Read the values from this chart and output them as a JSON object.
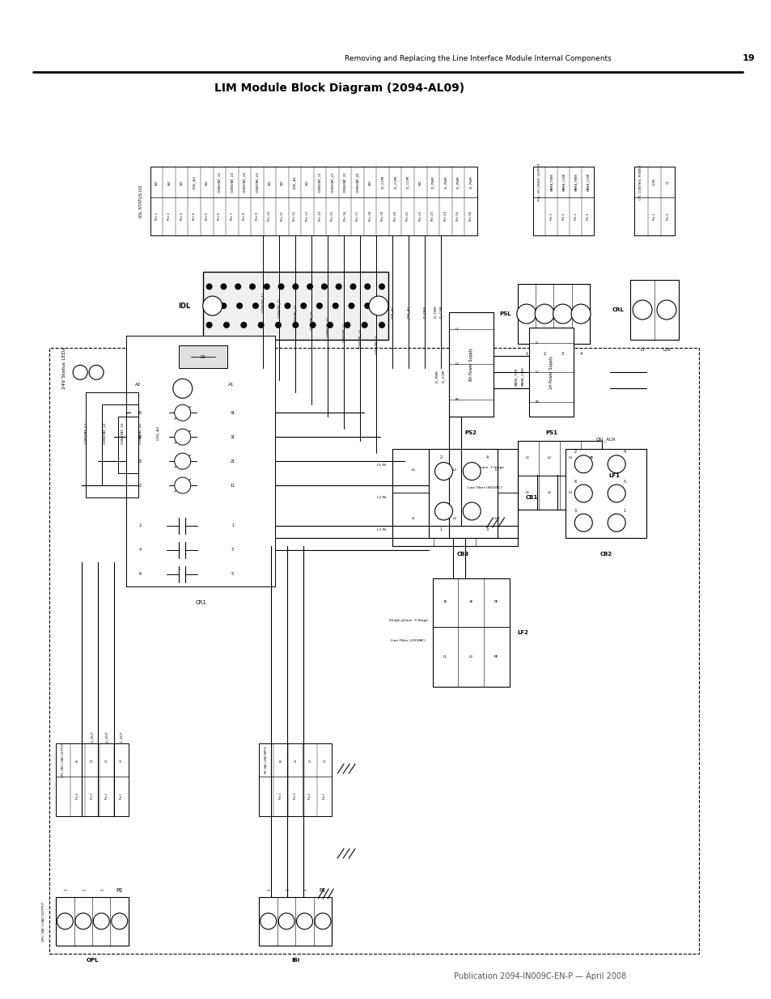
{
  "page_width": 9.54,
  "page_height": 12.35,
  "bg_color": "#ffffff",
  "header_text": "Removing and Replacing the Line Interface Module Internal Components",
  "header_page_num": "19",
  "footer_text": "Publication 2094-IN009C-EN-P — April 2008",
  "title": "LIM Module Block Diagram (2094-AL09)",
  "idl_labels_top": [
    "N/C",
    "N/C",
    "N/C",
    "COIL_A2",
    "N/C",
    "CONSTAT_12",
    "CONSTAT_22",
    "CONSTAT_32",
    "CONSTAT_42",
    "N/C",
    "N/C",
    "COIL_A1",
    "N/C",
    "CONSTAT_11",
    "CONSTAT_21",
    "CONSTAT_31",
    "CONSTAT_41",
    "N/C",
    "IO_COM",
    "IO_COM",
    "IO_COM",
    "N/C",
    "IO_PWR",
    "IO_PWR",
    "IO_PWR",
    "IO_PWR"
  ],
  "idl_pin_labels": [
    "Pin 1",
    "Pin 2",
    "Pin 3",
    "Pin 4",
    "Pin 5",
    "Pin 6",
    "Pin 7",
    "Pin 8",
    "Pin 9",
    "Pin 10",
    "Pin 11",
    "Pin 12",
    "Pin 13",
    "Pin 14",
    "Pin 15",
    "Pin 16",
    "Pin 17",
    "Pin 18",
    "Pin 19",
    "Pin 20",
    "Pin 21",
    "Pin 22",
    "Pin 23",
    "Pin 24",
    "Pin 25",
    "Pin 26"
  ],
  "psl_top_labels": [
    "PSL: I/O 24VDC OUTPUT",
    "MBRK_PWR",
    "MBRK_COM",
    "MBRK_PWR",
    "MBRK_COM"
  ],
  "psl_pin_labels": [
    "Pin 1",
    "Pin 2",
    "Pin 3",
    "Pin 4"
  ],
  "crl_top_labels": [
    "CPL CONTROL POWER",
    "L2/N",
    "L1"
  ],
  "crl_pin_labels": [
    "Pin 1",
    "Pin 2"
  ],
  "opl_top_labels": [
    "OPL: VAC LOAD OUTPUT",
    "PE",
    "L3",
    "L2",
    "L1"
  ],
  "opl_pin_labels": [
    "Pin 4",
    "Pin 3",
    "Pin 2",
    "Pin 1"
  ],
  "ipl_top_labels": [
    "IPL VAC LINE INPUT",
    "PE",
    "L3",
    "L2",
    "L1"
  ],
  "ipl_pin_labels": [
    "Pin 4",
    "Pin 3",
    "Pin 2",
    "Pin 1"
  ]
}
